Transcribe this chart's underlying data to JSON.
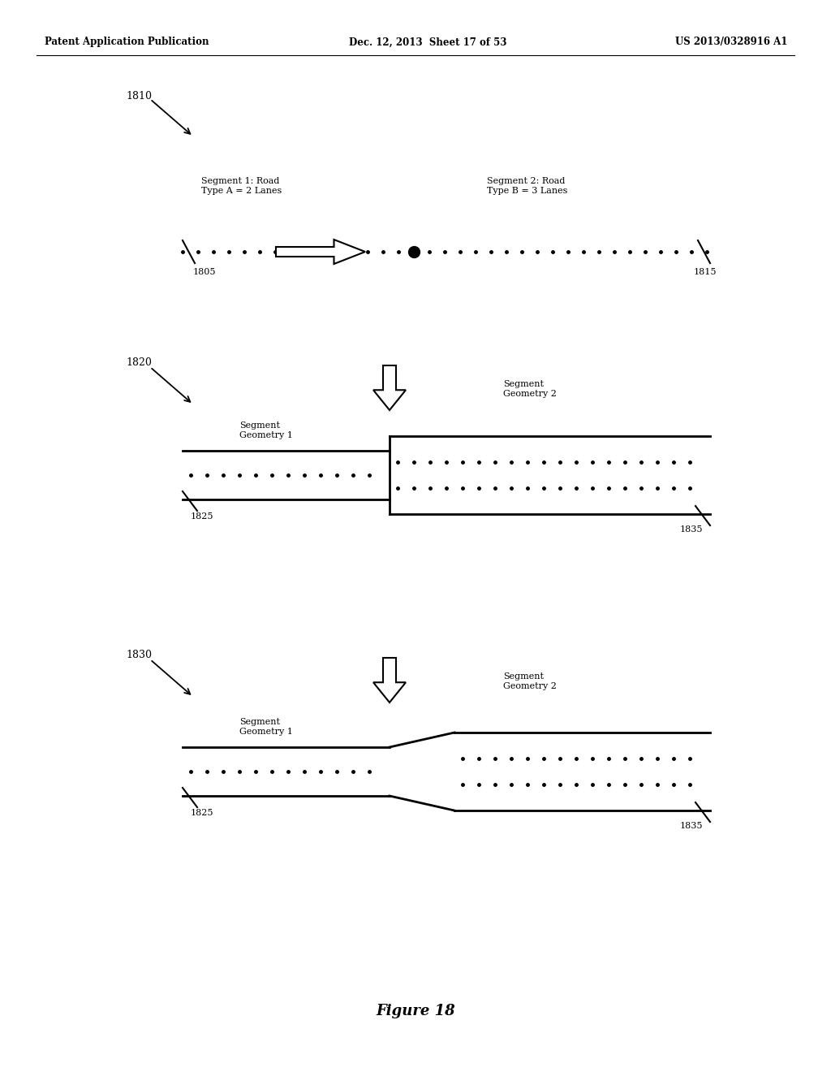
{
  "header_left": "Patent Application Publication",
  "header_mid": "Dec. 12, 2013  Sheet 17 of 53",
  "header_right": "US 2013/0328916 A1",
  "figure_label": "Figure 18",
  "diagram1_label": "1810",
  "seg1_text": "Segment 1: Road\nType A = 2 Lanes",
  "seg2_text": "Segment 2: Road\nType B = 3 Lanes",
  "label_1805": "1805",
  "label_1815": "1815",
  "diagram2_label": "1820",
  "seg_geo1_text": "Segment\nGeometry 1",
  "seg_geo2_text": "Segment\nGeometry 2",
  "label_1825a": "1825",
  "label_1835a": "1835",
  "diagram3_label": "1830",
  "seg_geo1b_text": "Segment\nGeometry 1",
  "seg_geo2b_text": "Segment\nGeometry 2",
  "label_1825b": "1825",
  "label_1835b": "1835",
  "bg_color": "#ffffff",
  "line_color": "#000000",
  "text_color": "#000000"
}
